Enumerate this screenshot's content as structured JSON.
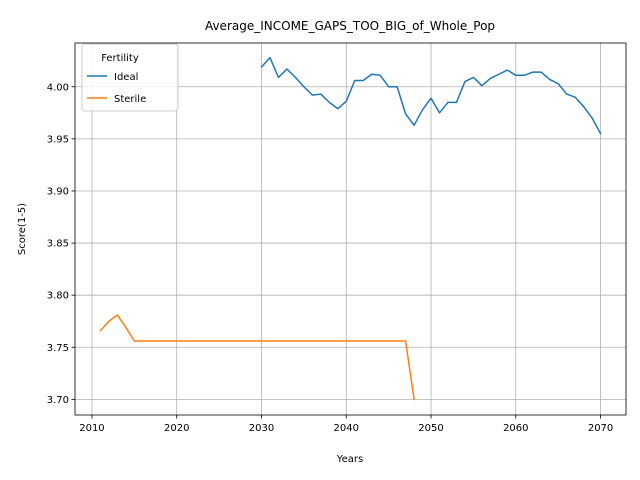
{
  "chart_data": {
    "type": "line",
    "title": "Average_INCOME_GAPS_TOO_BIG_of_Whole_Pop",
    "xlabel": "Years",
    "ylabel": "Score(1-5)",
    "xlim": [
      2008,
      2073
    ],
    "ylim": [
      3.685,
      4.042
    ],
    "xticks": [
      2010,
      2020,
      2030,
      2040,
      2050,
      2060,
      2070
    ],
    "yticks": [
      3.7,
      3.75,
      3.8,
      3.85,
      3.9,
      3.95,
      4.0
    ],
    "xtick_labels": [
      "2010",
      "2020",
      "2030",
      "2040",
      "2050",
      "2060",
      "2070"
    ],
    "ytick_labels": [
      "3.70",
      "3.75",
      "3.80",
      "3.85",
      "3.90",
      "3.95",
      "4.00"
    ],
    "grid": true,
    "legend": {
      "title": "Fertility",
      "position": "top-left"
    },
    "series": [
      {
        "name": "Ideal",
        "color": "#1f77b4",
        "x": [
          2030,
          2031,
          2032,
          2033,
          2034,
          2035,
          2036,
          2037,
          2038,
          2039,
          2040,
          2041,
          2042,
          2043,
          2044,
          2045,
          2046,
          2047,
          2048,
          2049,
          2050,
          2051,
          2052,
          2053,
          2054,
          2055,
          2056,
          2057,
          2058,
          2059,
          2060,
          2061,
          2062,
          2063,
          2064,
          2065,
          2066,
          2067,
          2068,
          2069,
          2070
        ],
        "y": [
          4.019,
          4.028,
          4.009,
          4.017,
          4.009,
          4.0,
          3.992,
          3.993,
          3.985,
          3.979,
          3.986,
          4.006,
          4.006,
          4.012,
          4.011,
          4.0,
          4.0,
          3.974,
          3.963,
          3.978,
          3.989,
          3.975,
          3.985,
          3.985,
          4.005,
          4.009,
          4.001,
          4.008,
          4.012,
          4.016,
          4.011,
          4.011,
          4.014,
          4.014,
          4.007,
          4.003,
          3.993,
          3.99,
          3.981,
          3.97,
          3.955
        ]
      },
      {
        "name": "Sterile",
        "color": "#ff7f0e",
        "x": [
          2011,
          2012,
          2013,
          2014,
          2015,
          2016,
          2017,
          2018,
          2019,
          2020,
          2021,
          2022,
          2023,
          2024,
          2025,
          2026,
          2027,
          2028,
          2029,
          2030,
          2031,
          2032,
          2033,
          2034,
          2035,
          2036,
          2037,
          2038,
          2039,
          2040,
          2041,
          2042,
          2043,
          2044,
          2045,
          2046,
          2047,
          2048
        ],
        "y": [
          3.766,
          3.775,
          3.781,
          3.769,
          3.756,
          3.756,
          3.756,
          3.756,
          3.756,
          3.756,
          3.756,
          3.756,
          3.756,
          3.756,
          3.756,
          3.756,
          3.756,
          3.756,
          3.756,
          3.756,
          3.756,
          3.756,
          3.756,
          3.756,
          3.756,
          3.756,
          3.756,
          3.756,
          3.756,
          3.756,
          3.756,
          3.756,
          3.756,
          3.756,
          3.756,
          3.756,
          3.756,
          3.7
        ]
      }
    ]
  }
}
